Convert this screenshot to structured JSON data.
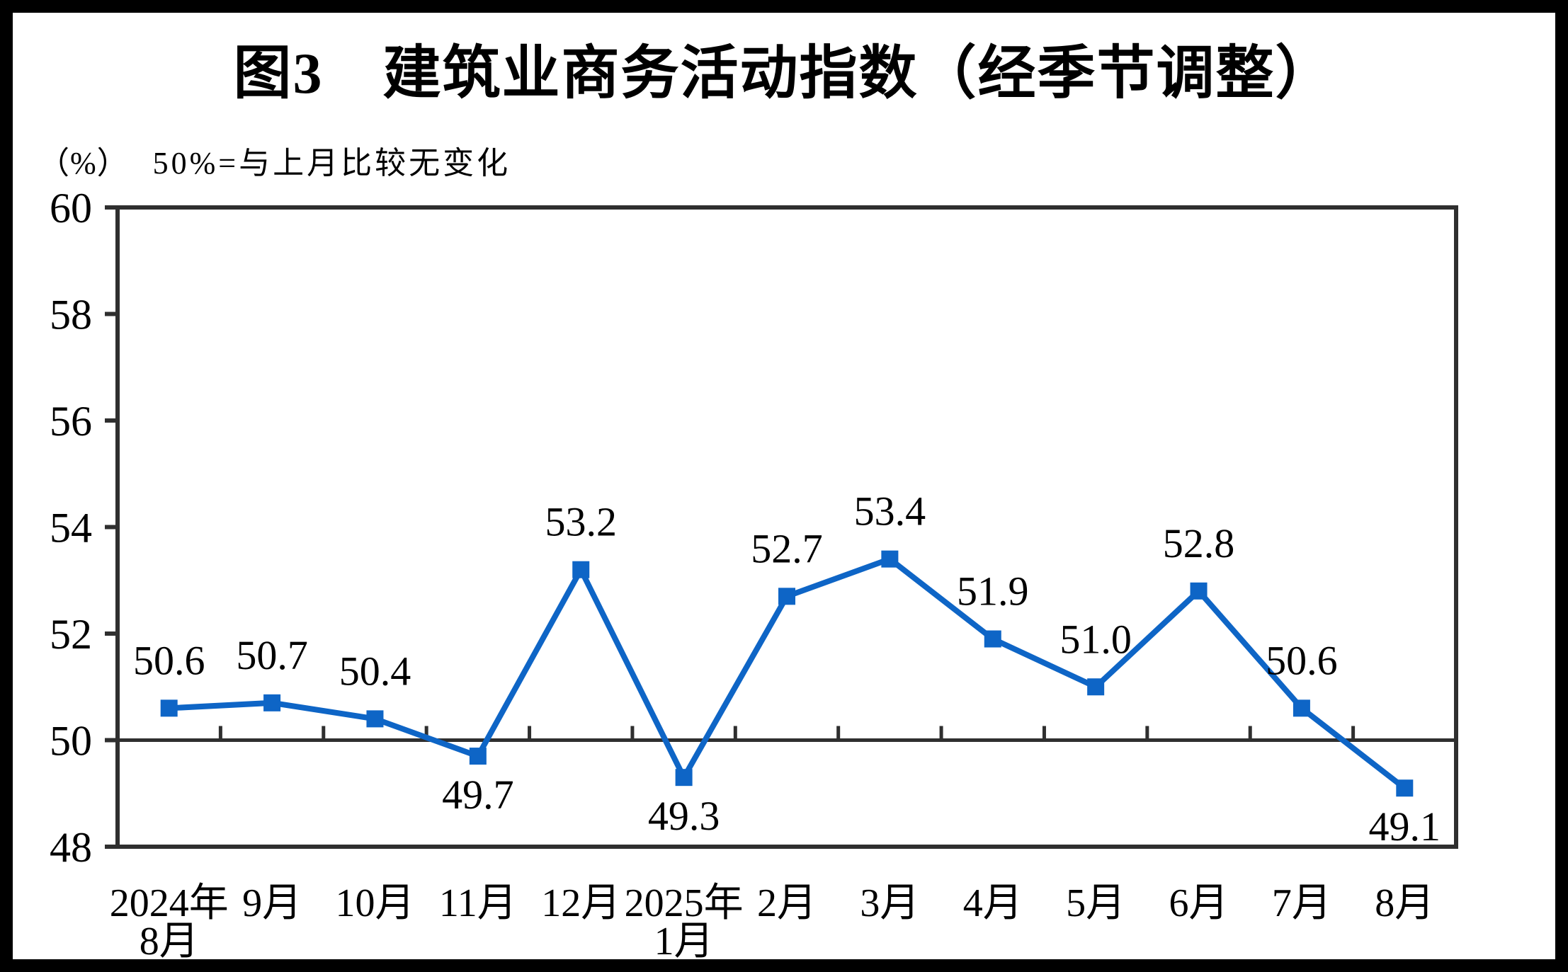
{
  "figure": {
    "title": "图3　建筑业商务活动指数（经季节调整）",
    "unit_label": "（%）",
    "reference_note": "50%=与上月比较无变化"
  },
  "chart_data": {
    "type": "line",
    "title": "图3 建筑业商务活动指数（经季节调整）",
    "ylabel": "（%）",
    "annotation": "50%=与上月比较无变化",
    "categories": [
      "2024年8月",
      "9月",
      "10月",
      "11月",
      "12月",
      "2025年1月",
      "2月",
      "3月",
      "4月",
      "5月",
      "6月",
      "7月",
      "8月"
    ],
    "category_label_lines": [
      [
        "2024年",
        "8月"
      ],
      [
        "9月"
      ],
      [
        "10月"
      ],
      [
        "11月"
      ],
      [
        "12月"
      ],
      [
        "2025年",
        "1月"
      ],
      [
        "2月"
      ],
      [
        "3月"
      ],
      [
        "4月"
      ],
      [
        "5月"
      ],
      [
        "6月"
      ],
      [
        "7月"
      ],
      [
        "8月"
      ]
    ],
    "values": [
      50.6,
      50.7,
      50.4,
      49.7,
      53.2,
      49.3,
      52.7,
      53.4,
      51.9,
      51.0,
      52.8,
      50.6,
      49.1
    ],
    "value_label_placement": [
      "above",
      "above",
      "above",
      "below",
      "above",
      "below",
      "above",
      "above",
      "above",
      "above",
      "above",
      "above",
      "below"
    ],
    "ylim": [
      48,
      60
    ],
    "ytick_interval": 2,
    "reference_line_y": 50,
    "grid": false,
    "legend": "none",
    "marker": "square",
    "colors": {
      "line": "#0E65C6",
      "axis": "#2F2F2F",
      "text": "#000000",
      "background": "#FFFFFF",
      "page_border": "#000000"
    }
  }
}
